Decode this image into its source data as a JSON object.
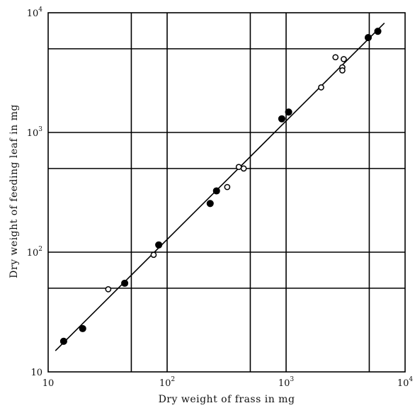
{
  "chart_data": {
    "type": "scatter",
    "title": "",
    "xlabel": "Dry weight of frass in mg",
    "ylabel": "Dry weight of feeding leaf in mg",
    "x_scale": "log",
    "y_scale": "log",
    "xlim": [
      10,
      10000
    ],
    "ylim": [
      10,
      10000
    ],
    "grid": true,
    "x_ticks": [
      {
        "base": "10",
        "exp": ""
      },
      {
        "base": "10",
        "exp": "2"
      },
      {
        "base": "10",
        "exp": "3"
      },
      {
        "base": "10",
        "exp": "4"
      }
    ],
    "y_ticks": [
      {
        "base": "10",
        "exp": ""
      },
      {
        "base": "10",
        "exp": "2"
      },
      {
        "base": "10",
        "exp": "3"
      },
      {
        "base": "10",
        "exp": "4"
      }
    ],
    "series": [
      {
        "marker": "filled-circle",
        "x": [
          13.5,
          19.5,
          44,
          85,
          230,
          260,
          920,
          1050,
          4900,
          5900
        ],
        "y": [
          18,
          23,
          55,
          115,
          255,
          325,
          1300,
          1480,
          6200,
          7000
        ]
      },
      {
        "marker": "open-circle",
        "x": [
          32,
          77,
          320,
          400,
          440,
          1970,
          2600,
          2970,
          2970,
          3050
        ],
        "y": [
          49,
          95,
          350,
          515,
          500,
          2380,
          4250,
          3500,
          3300,
          4100
        ]
      }
    ],
    "regression_line": {
      "x": [
        11.5,
        6700
      ],
      "y": [
        15,
        8200
      ]
    }
  }
}
